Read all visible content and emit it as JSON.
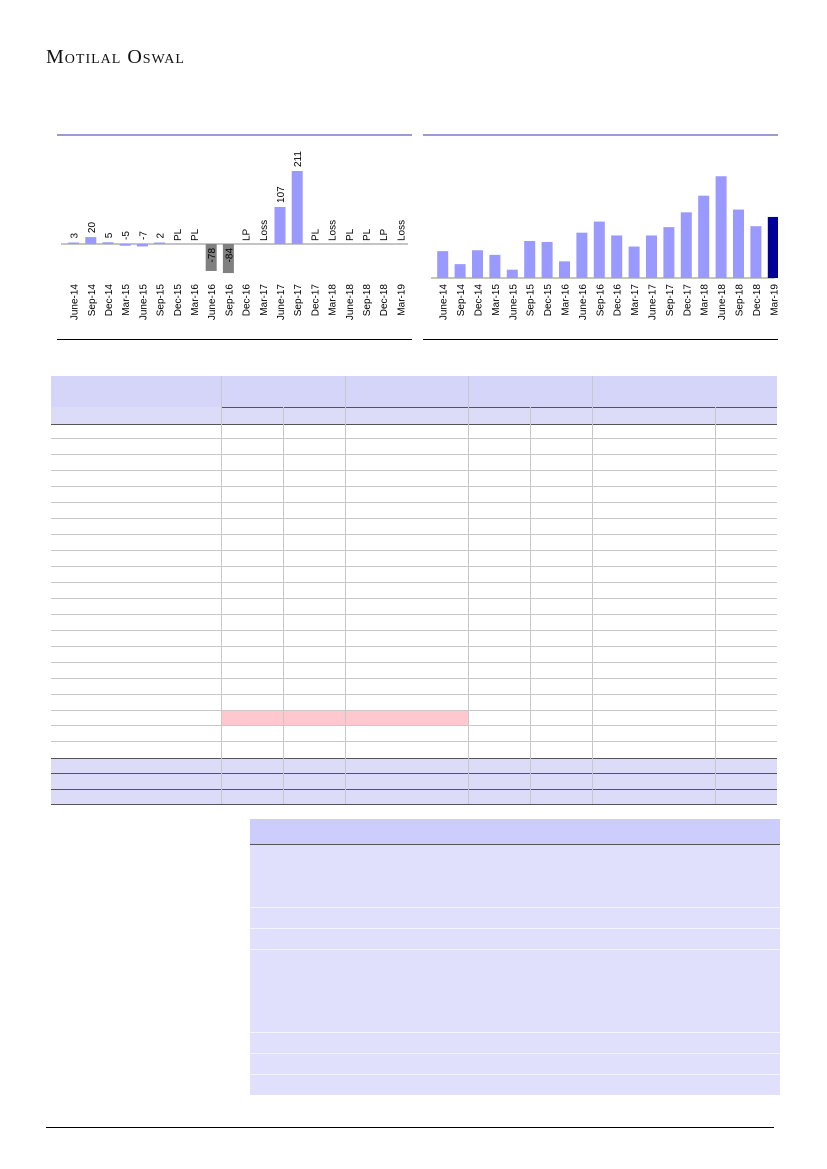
{
  "brand": {
    "name": "Motilal Oswal"
  },
  "colors": {
    "bar": "#9999ff",
    "bar_negative": "#808080",
    "bar_highlight": "#000099",
    "table_header": "#dcdcf9",
    "table_pink": "#ffc7ce",
    "lower_header": "#cccdfd",
    "lower_body": "#e0e0fd"
  },
  "chart_data": [
    {
      "type": "bar",
      "categories": [
        "June-14",
        "Sep-14",
        "Dec-14",
        "Mar-15",
        "June-15",
        "Sep-15",
        "Dec-15",
        "Mar-16",
        "June-16",
        "Sep-16",
        "Dec-16",
        "Mar-17",
        "June-17",
        "Sep-17",
        "Dec-17",
        "Mar-18",
        "June-18",
        "Sep-18",
        "Dec-18",
        "Mar-19"
      ],
      "values": [
        3,
        20,
        5,
        -5,
        -7,
        2,
        null,
        null,
        -78,
        -84,
        null,
        null,
        107,
        211,
        null,
        null,
        null,
        null,
        null,
        null
      ],
      "data_labels": [
        "3",
        "20",
        "5",
        "-5",
        "-7",
        "2",
        "PL",
        "PL",
        "-78",
        "-84",
        "LP",
        "Loss",
        "107",
        "211",
        "PL",
        "Loss",
        "PL",
        "PL",
        "LP",
        "Loss"
      ],
      "title": "",
      "xlabel": "",
      "ylabel": "",
      "ylim": [
        -100,
        240
      ]
    },
    {
      "type": "bar",
      "categories": [
        "June-14",
        "Sep-14",
        "Dec-14",
        "Mar-15",
        "June-15",
        "Sep-15",
        "Dec-15",
        "Mar-16",
        "June-16",
        "Sep-16",
        "Dec-16",
        "Mar-17",
        "June-17",
        "Sep-17",
        "Dec-17",
        "Mar-18",
        "June-18",
        "Sep-18",
        "Dec-18",
        "Mar-19"
      ],
      "values": [
        2.9,
        1.5,
        3.0,
        2.5,
        0.9,
        4.0,
        3.9,
        1.8,
        4.9,
        6.1,
        4.6,
        3.4,
        4.6,
        5.5,
        7.1,
        8.9,
        11.0,
        7.4,
        5.6,
        6.6
      ],
      "highlight_index": 19,
      "title": "",
      "xlabel": "",
      "ylabel": "",
      "ylim": [
        0,
        12
      ]
    }
  ]
}
